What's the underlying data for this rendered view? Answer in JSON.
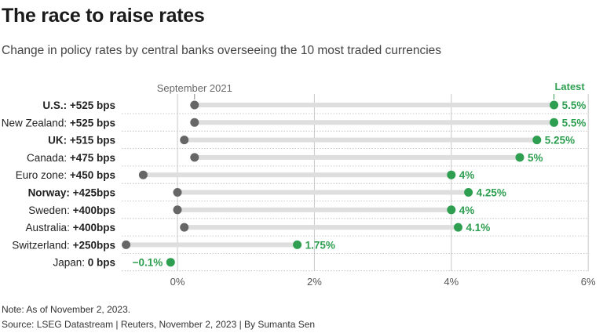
{
  "title": "The race to raise rates",
  "subtitle": "Change in policy rates by central banks overseeing the 10 most traded currencies",
  "note": "Note: As of November 2, 2023.",
  "source": "Source: LSEG Datastream | Reuters, November 2, 2023 | By Sumanta Sen",
  "colors": {
    "start": "#666666",
    "latest": "#2e9e50",
    "bar": "#dedede",
    "grid": "#c8c8c8"
  },
  "chart_data": {
    "type": "dumbbell",
    "start_label": "September 2021",
    "end_label": "Latest",
    "x_ticks": [
      {
        "value": 0,
        "label": "0%"
      },
      {
        "value": 2,
        "label": "2%"
      },
      {
        "value": 4,
        "label": "4%"
      },
      {
        "value": 6,
        "label": "6%"
      }
    ],
    "xlim": [
      -0.85,
      6.0
    ],
    "rows": [
      {
        "country": "U.S.:",
        "change": "+525 bps",
        "bold_country": true,
        "start": 0.25,
        "latest": 5.5,
        "latest_label": "5.5%"
      },
      {
        "country": "New Zealand:",
        "change": "+525 bps",
        "bold_country": false,
        "start": 0.25,
        "latest": 5.5,
        "latest_label": "5.5%"
      },
      {
        "country": "UK:",
        "change": "+515 bps",
        "bold_country": true,
        "start": 0.1,
        "latest": 5.25,
        "latest_label": "5.25%"
      },
      {
        "country": "Canada:",
        "change": "+475 bps",
        "bold_country": false,
        "start": 0.25,
        "latest": 5.0,
        "latest_label": "5%"
      },
      {
        "country": "Euro zone:",
        "change": "+450 bps",
        "bold_country": false,
        "start": -0.5,
        "latest": 4.0,
        "latest_label": "4%"
      },
      {
        "country": "Norway:",
        "change": "+425bps",
        "bold_country": true,
        "start": 0.0,
        "latest": 4.25,
        "latest_label": "4.25%"
      },
      {
        "country": "Sweden:",
        "change": "+400bps",
        "bold_country": false,
        "start": 0.0,
        "latest": 4.0,
        "latest_label": "4%"
      },
      {
        "country": "Australia:",
        "change": "+400bps",
        "bold_country": false,
        "start": 0.1,
        "latest": 4.1,
        "latest_label": "4.1%"
      },
      {
        "country": "Switzerland:",
        "change": "+250bps",
        "bold_country": false,
        "start": -0.75,
        "latest": 1.75,
        "latest_label": "1.75%"
      },
      {
        "country": "Japan:",
        "change": "0 bps",
        "bold_country": false,
        "start": -0.1,
        "latest": -0.1,
        "latest_label": "−0.1%"
      }
    ]
  }
}
